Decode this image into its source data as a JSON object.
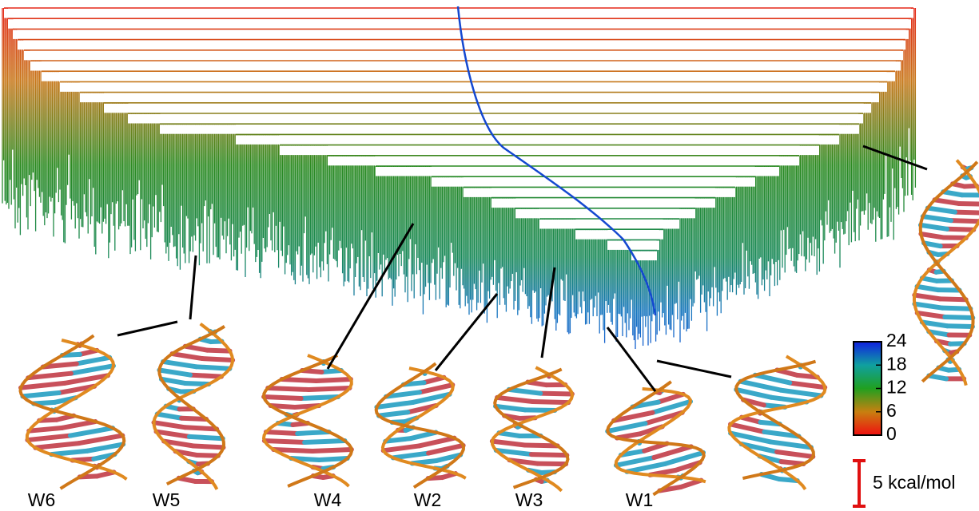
{
  "structures": [
    {
      "label": "W6"
    },
    {
      "label": "W5"
    },
    {
      "label": "W4"
    },
    {
      "label": "W2"
    },
    {
      "label": "W3"
    },
    {
      "label": "W1"
    }
  ],
  "colorbar": {
    "lim": [
      0,
      24
    ],
    "ticks": [
      0,
      6,
      12,
      18,
      24
    ]
  },
  "scale_bar": {
    "label": "5 kcal/mol"
  }
}
